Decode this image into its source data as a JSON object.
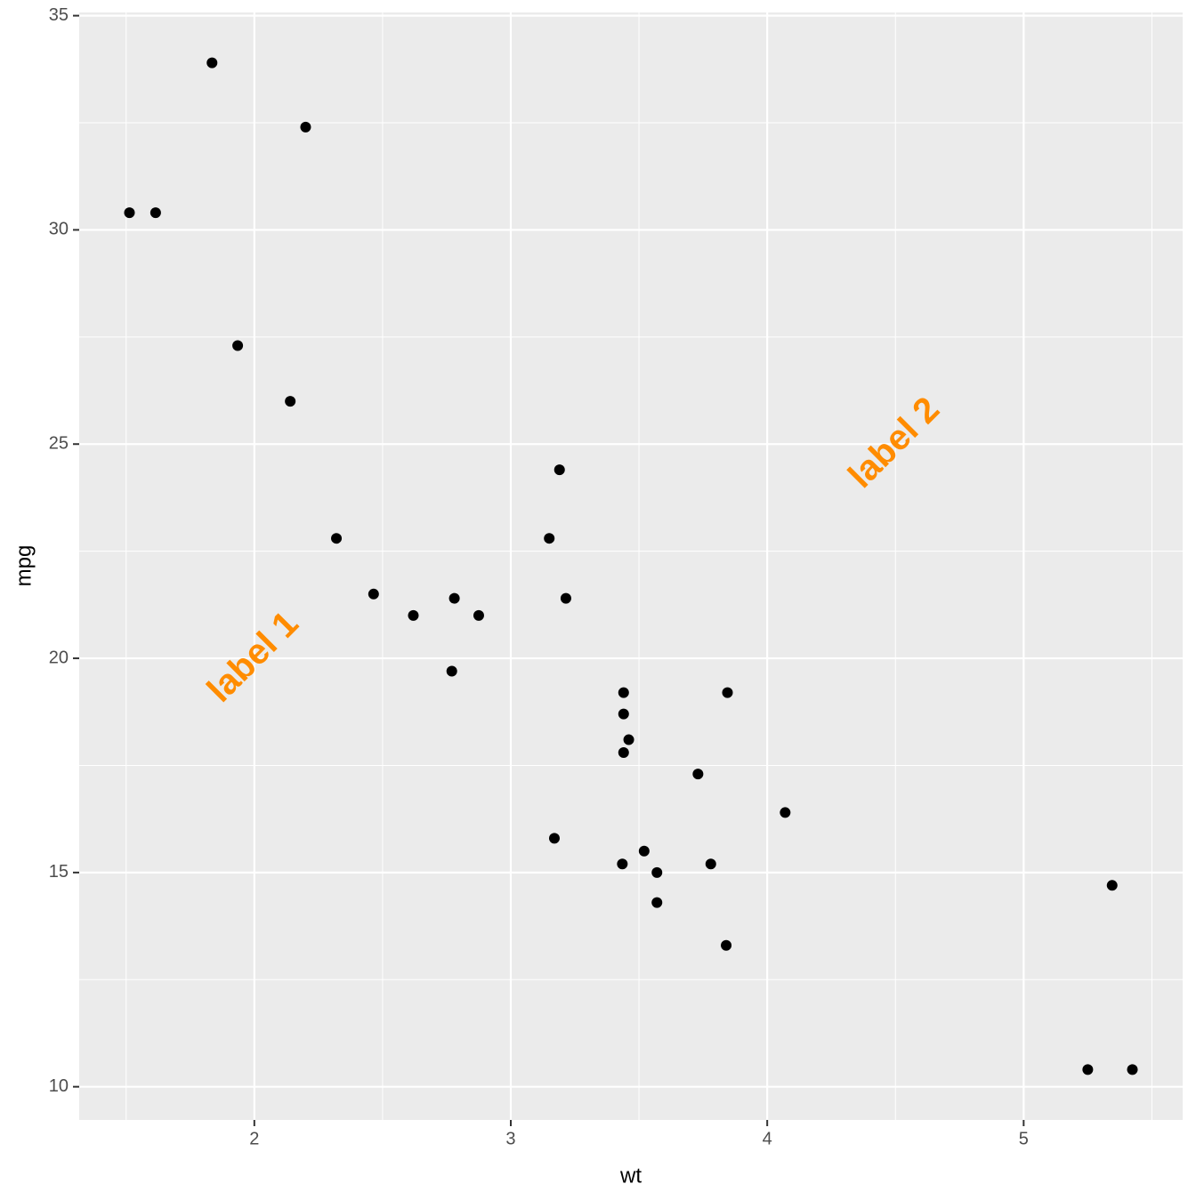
{
  "chart_data": {
    "type": "scatter",
    "x_label": "wt",
    "y_label": "mpg",
    "x": [
      2.62,
      2.875,
      2.32,
      3.215,
      3.44,
      3.46,
      3.57,
      3.19,
      3.15,
      3.44,
      3.44,
      4.07,
      3.73,
      3.78,
      5.25,
      5.424,
      5.345,
      2.2,
      1.615,
      1.835,
      2.465,
      3.52,
      3.435,
      3.84,
      3.845,
      1.935,
      2.14,
      1.513,
      3.17,
      2.77,
      3.57,
      2.78
    ],
    "values": [
      21.0,
      21.0,
      22.8,
      21.4,
      18.7,
      18.1,
      14.3,
      24.4,
      22.8,
      19.2,
      17.8,
      16.4,
      17.3,
      15.2,
      10.4,
      10.4,
      14.7,
      32.4,
      30.4,
      33.9,
      21.5,
      15.5,
      15.2,
      13.3,
      19.2,
      27.3,
      26.0,
      30.4,
      15.8,
      19.7,
      15.0,
      21.4
    ],
    "color": "#000000",
    "xlim": [
      1.317,
      5.62
    ],
    "ylim": [
      9.225,
      35.075
    ],
    "xticks": [
      2,
      3,
      4,
      5
    ],
    "yticks": [
      10,
      15,
      20,
      25,
      30,
      35
    ],
    "grid": true,
    "annotations": [
      {
        "text": "label 1",
        "x": 2,
        "y": 20,
        "color": "#FF8C00",
        "angle": 45
      },
      {
        "text": "label 2",
        "x": 4.5,
        "y": 25,
        "color": "#FF8C00",
        "angle": 45
      }
    ]
  }
}
